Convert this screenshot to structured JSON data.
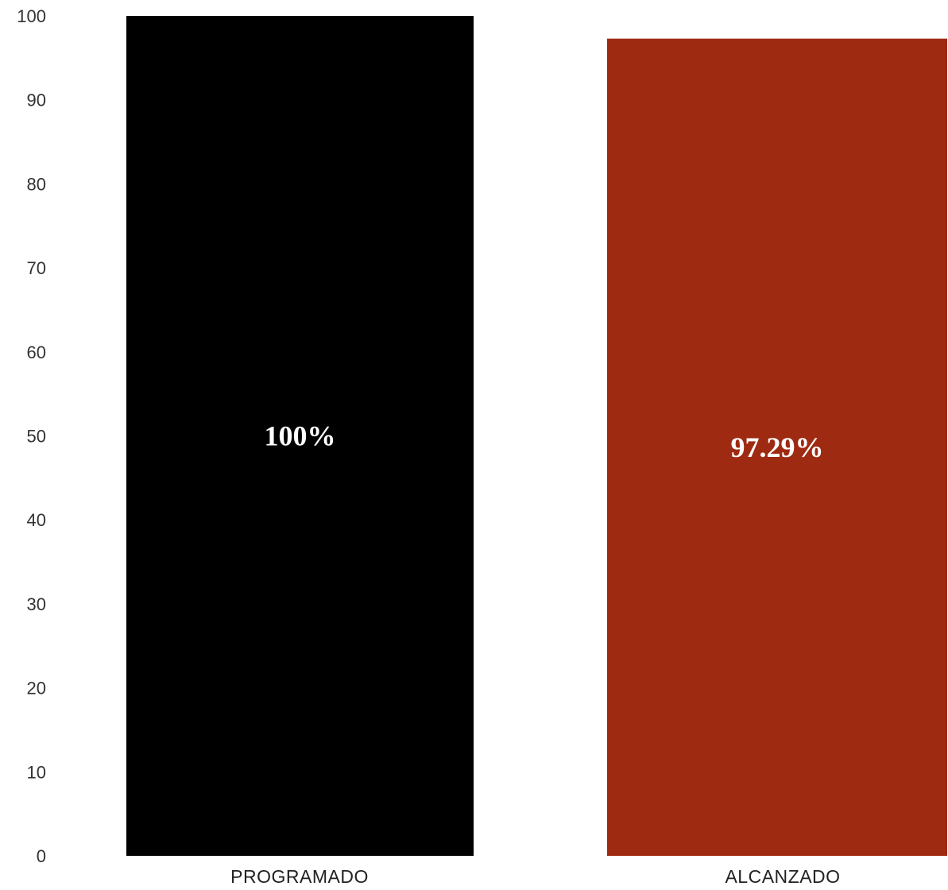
{
  "chart_data": {
    "type": "bar",
    "title": "",
    "xlabel": "",
    "ylabel": "",
    "categories": [
      "PROGRAMADO",
      "ALCANZADO"
    ],
    "values": [
      100,
      97.29
    ],
    "data_labels": [
      "100%",
      "97.29%"
    ],
    "colors": [
      "#000000",
      "#9e2a12"
    ],
    "ylim": [
      0,
      100
    ],
    "yticks": [
      0,
      10,
      20,
      30,
      40,
      50,
      60,
      70,
      80,
      90,
      100
    ],
    "grid": false,
    "legend": "none"
  }
}
